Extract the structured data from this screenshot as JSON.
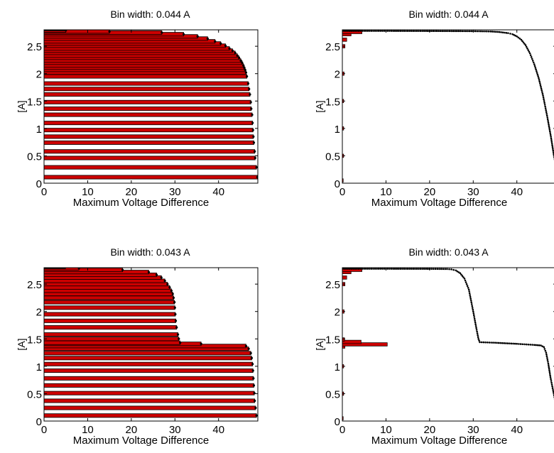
{
  "chart_data": [
    {
      "type": "bar",
      "title": "Bin width: 0.044 A",
      "xlabel": "Maximum Voltage Difference",
      "ylabel": "[A]",
      "xlim": [
        0,
        49
      ],
      "ylim": [
        0,
        2.8
      ],
      "xticks": [
        "0",
        "10",
        "20",
        "30",
        "40"
      ],
      "yticks": [
        "0",
        "0.5",
        "1",
        "1.5",
        "2",
        "2.5"
      ],
      "orientation": "horizontal",
      "bar_color": "#cc0000",
      "curve_color": "#000000",
      "bins": [
        {
          "y": 0.11,
          "x": 48.9
        },
        {
          "y": 0.29,
          "x": 48.7
        },
        {
          "y": 0.46,
          "x": 48.4
        },
        {
          "y": 0.58,
          "x": 48.3
        },
        {
          "y": 0.74,
          "x": 48.1
        },
        {
          "y": 0.85,
          "x": 48.0
        },
        {
          "y": 0.97,
          "x": 47.9
        },
        {
          "y": 1.1,
          "x": 47.8
        },
        {
          "y": 1.25,
          "x": 47.7
        },
        {
          "y": 1.36,
          "x": 47.5
        },
        {
          "y": 1.48,
          "x": 47.4
        },
        {
          "y": 1.62,
          "x": 47.2
        },
        {
          "y": 1.72,
          "x": 47.0
        },
        {
          "y": 1.82,
          "x": 46.8
        },
        {
          "y": 1.95,
          "x": 46.5
        },
        {
          "y": 2.02,
          "x": 46.3
        },
        {
          "y": 2.07,
          "x": 46.1
        },
        {
          "y": 2.11,
          "x": 45.9
        },
        {
          "y": 2.15,
          "x": 45.7
        },
        {
          "y": 2.2,
          "x": 45.4
        },
        {
          "y": 2.24,
          "x": 45.1
        },
        {
          "y": 2.29,
          "x": 44.7
        },
        {
          "y": 2.33,
          "x": 44.3
        },
        {
          "y": 2.38,
          "x": 43.8
        },
        {
          "y": 2.42,
          "x": 43.2
        },
        {
          "y": 2.46,
          "x": 42.5
        },
        {
          "y": 2.51,
          "x": 41.6
        },
        {
          "y": 2.55,
          "x": 40.5
        },
        {
          "y": 2.59,
          "x": 39.2
        },
        {
          "y": 2.64,
          "x": 37.5
        },
        {
          "y": 2.68,
          "x": 35.2
        },
        {
          "y": 2.72,
          "x": 32.0
        },
        {
          "y": 2.75,
          "x": 27.0
        },
        {
          "y": 2.77,
          "x": 15.0
        },
        {
          "y": 2.79,
          "x": 5.0
        }
      ]
    },
    {
      "type": "scatter",
      "title": "Bin width: 0.044 A",
      "xlabel": "Maximum Voltage Difference",
      "ylabel": "[A]",
      "xlim": [
        0,
        49
      ],
      "ylim": [
        0,
        2.8
      ],
      "xticks": [
        "0",
        "10",
        "20",
        "30",
        "40"
      ],
      "yticks": [
        "0",
        "0.5",
        "1",
        "1.5",
        "2",
        "2.5"
      ],
      "bar_color": "#cc0000",
      "curve_color": "#000000",
      "histogram": [
        {
          "y": 0.05,
          "x": 0.2
        },
        {
          "y": 0.5,
          "x": 0.3
        },
        {
          "y": 1.0,
          "x": 0.3
        },
        {
          "y": 1.5,
          "x": 0.3
        },
        {
          "y": 2.0,
          "x": 0.4
        },
        {
          "y": 2.5,
          "x": 0.6
        },
        {
          "y": 2.62,
          "x": 1.0
        },
        {
          "y": 2.72,
          "x": 2.0
        },
        {
          "y": 2.76,
          "x": 4.5
        }
      ],
      "curve_points": [
        [
          0,
          2.78
        ],
        [
          10,
          2.78
        ],
        [
          20,
          2.778
        ],
        [
          30,
          2.775
        ],
        [
          34,
          2.77
        ],
        [
          36,
          2.76
        ],
        [
          38,
          2.74
        ],
        [
          39,
          2.72
        ],
        [
          40,
          2.68
        ],
        [
          41,
          2.62
        ],
        [
          42,
          2.52
        ],
        [
          43,
          2.37
        ],
        [
          44,
          2.17
        ],
        [
          45,
          1.92
        ],
        [
          46,
          1.6
        ],
        [
          47,
          1.2
        ],
        [
          47.8,
          0.85
        ],
        [
          48.5,
          0.5
        ],
        [
          49,
          0.3
        ]
      ]
    },
    {
      "type": "bar",
      "title": "Bin width: 0.043 A",
      "xlabel": "Maximum Voltage Difference",
      "ylabel": "[A]",
      "xlim": [
        0,
        49
      ],
      "ylim": [
        0,
        2.8
      ],
      "xticks": [
        "0",
        "10",
        "20",
        "30",
        "40"
      ],
      "yticks": [
        "0",
        "0.5",
        "1",
        "1.5",
        "2",
        "2.5"
      ],
      "orientation": "horizontal",
      "bar_color": "#cc0000",
      "curve_color": "#000000",
      "bins": [
        {
          "y": 0.1,
          "x": 48.7
        },
        {
          "y": 0.24,
          "x": 48.5
        },
        {
          "y": 0.37,
          "x": 48.3
        },
        {
          "y": 0.51,
          "x": 48.2
        },
        {
          "y": 0.65,
          "x": 48.1
        },
        {
          "y": 0.78,
          "x": 48.0
        },
        {
          "y": 0.92,
          "x": 47.9
        },
        {
          "y": 1.04,
          "x": 47.8
        },
        {
          "y": 1.15,
          "x": 47.6
        },
        {
          "y": 1.24,
          "x": 47.4
        },
        {
          "y": 1.32,
          "x": 46.9
        },
        {
          "y": 1.37,
          "x": 46.3
        },
        {
          "y": 1.41,
          "x": 36.0
        },
        {
          "y": 1.43,
          "x": 31.2
        },
        {
          "y": 1.5,
          "x": 30.9
        },
        {
          "y": 1.58,
          "x": 30.7
        },
        {
          "y": 1.71,
          "x": 30.4
        },
        {
          "y": 1.83,
          "x": 30.2
        },
        {
          "y": 1.95,
          "x": 30.1
        },
        {
          "y": 2.07,
          "x": 30.0
        },
        {
          "y": 2.17,
          "x": 29.9
        },
        {
          "y": 2.25,
          "x": 29.7
        },
        {
          "y": 2.32,
          "x": 29.5
        },
        {
          "y": 2.38,
          "x": 29.2
        },
        {
          "y": 2.44,
          "x": 28.8
        },
        {
          "y": 2.5,
          "x": 28.3
        },
        {
          "y": 2.56,
          "x": 27.7
        },
        {
          "y": 2.62,
          "x": 26.9
        },
        {
          "y": 2.67,
          "x": 25.8
        },
        {
          "y": 2.72,
          "x": 24.0
        },
        {
          "y": 2.76,
          "x": 18.0
        },
        {
          "y": 2.79,
          "x": 8.0
        }
      ]
    },
    {
      "type": "scatter",
      "title": "Bin width: 0.043 A",
      "xlabel": "Maximum Voltage Difference",
      "ylabel": "[A]",
      "xlim": [
        0,
        49
      ],
      "ylim": [
        0,
        2.8
      ],
      "xticks": [
        "0",
        "10",
        "20",
        "30",
        "40"
      ],
      "yticks": [
        "0",
        "0.5",
        "1",
        "1.5",
        "2",
        "2.5"
      ],
      "bar_color": "#cc0000",
      "curve_color": "#000000",
      "histogram": [
        {
          "y": 0.05,
          "x": 0.2
        },
        {
          "y": 0.5,
          "x": 0.3
        },
        {
          "y": 1.0,
          "x": 0.3
        },
        {
          "y": 1.36,
          "x": 0.6
        },
        {
          "y": 1.4,
          "x": 10.3
        },
        {
          "y": 1.445,
          "x": 4.3
        },
        {
          "y": 1.49,
          "x": 0.5
        },
        {
          "y": 2.0,
          "x": 0.4
        },
        {
          "y": 2.5,
          "x": 0.6
        },
        {
          "y": 2.62,
          "x": 1.0
        },
        {
          "y": 2.72,
          "x": 2.0
        },
        {
          "y": 2.76,
          "x": 4.5
        }
      ],
      "curve_points": [
        [
          0,
          2.78
        ],
        [
          10,
          2.78
        ],
        [
          20,
          2.778
        ],
        [
          24,
          2.775
        ],
        [
          25,
          2.77
        ],
        [
          26,
          2.75
        ],
        [
          27,
          2.7
        ],
        [
          28,
          2.6
        ],
        [
          29,
          2.4
        ],
        [
          30,
          2.0
        ],
        [
          30.7,
          1.7
        ],
        [
          31.2,
          1.5
        ],
        [
          31.5,
          1.44
        ],
        [
          35,
          1.43
        ],
        [
          40,
          1.41
        ],
        [
          44,
          1.39
        ],
        [
          45.5,
          1.38
        ],
        [
          46.2,
          1.35
        ],
        [
          46.7,
          1.25
        ],
        [
          47.2,
          1.05
        ],
        [
          47.7,
          0.8
        ],
        [
          48.2,
          0.6
        ],
        [
          48.7,
          0.4
        ],
        [
          49,
          0.3
        ]
      ]
    }
  ]
}
